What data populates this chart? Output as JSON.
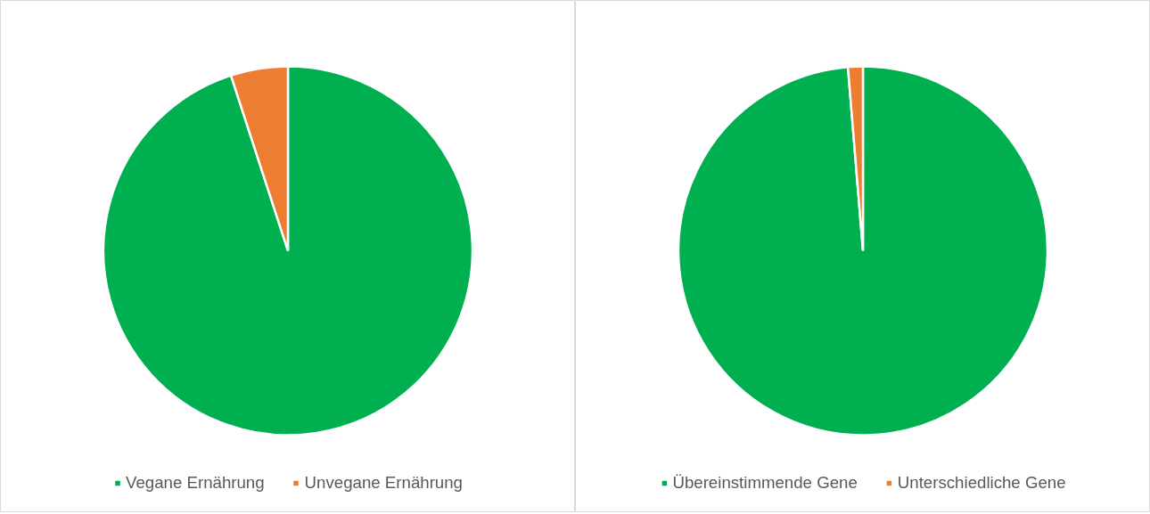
{
  "chart_data": [
    {
      "type": "pie",
      "categories": [
        "Vegane Ernährung",
        "Unvegane Ernährung"
      ],
      "values": [
        95,
        5
      ],
      "colors": [
        "#00b050",
        "#ed7d31"
      ],
      "legend": "bottom"
    },
    {
      "type": "pie",
      "categories": [
        "Übereinstimmende Gene",
        "Unterschiedliche Gene"
      ],
      "values": [
        98.7,
        1.3
      ],
      "colors": [
        "#00b050",
        "#ed7d31"
      ],
      "legend": "bottom"
    }
  ]
}
